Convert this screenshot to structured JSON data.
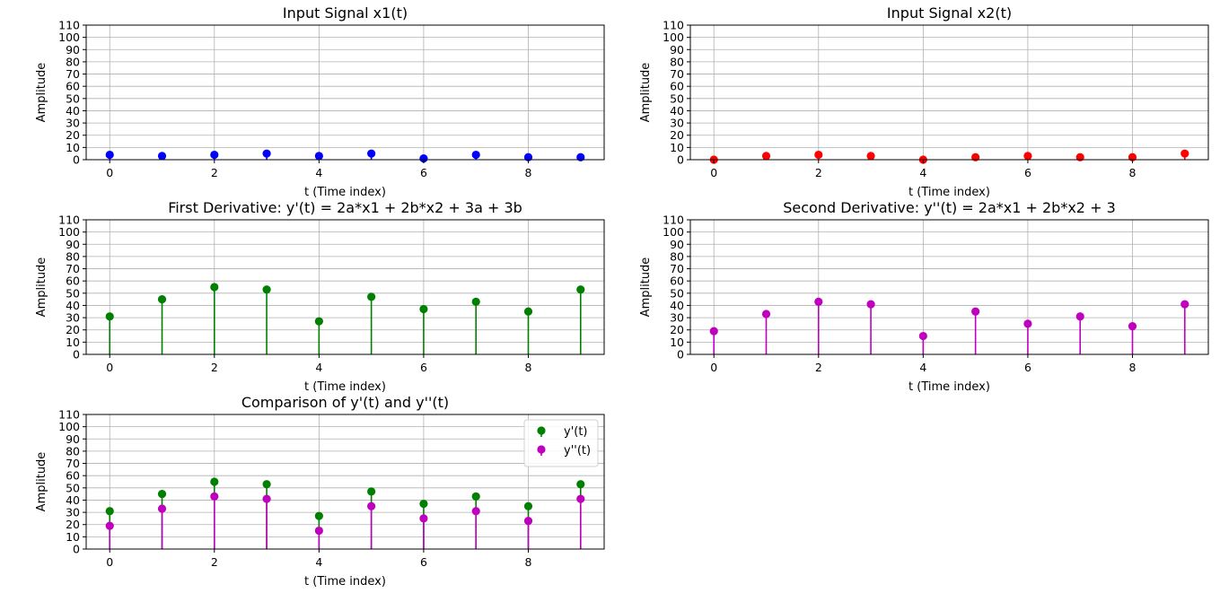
{
  "chart_data": [
    {
      "type": "stem",
      "title": "Input Signal x1(t)",
      "xlabel": "t (Time index)",
      "ylabel": "Amplitude",
      "xlim": [
        -0.45,
        9.45
      ],
      "ylim": [
        0,
        110
      ],
      "xticks": [
        0,
        2,
        4,
        6,
        8
      ],
      "yticks": [
        0,
        10,
        20,
        30,
        40,
        50,
        60,
        70,
        80,
        90,
        100,
        110
      ],
      "grid": true,
      "series": [
        {
          "color": "#0000ff",
          "x": [
            0,
            1,
            2,
            3,
            4,
            5,
            6,
            7,
            8,
            9
          ],
          "values": [
            4,
            3,
            4,
            5,
            3,
            5,
            1,
            4,
            2,
            2
          ]
        }
      ]
    },
    {
      "type": "stem",
      "title": "Input Signal x2(t)",
      "xlabel": "t (Time index)",
      "ylabel": "Amplitude",
      "xlim": [
        -0.45,
        9.45
      ],
      "ylim": [
        0,
        110
      ],
      "xticks": [
        0,
        2,
        4,
        6,
        8
      ],
      "yticks": [
        0,
        10,
        20,
        30,
        40,
        50,
        60,
        70,
        80,
        90,
        100,
        110
      ],
      "grid": true,
      "series": [
        {
          "color": "#ff0000",
          "x": [
            0,
            1,
            2,
            3,
            4,
            5,
            6,
            7,
            8,
            9
          ],
          "values": [
            0,
            3,
            4,
            3,
            0,
            2,
            3,
            2,
            2,
            5
          ]
        }
      ]
    },
    {
      "type": "stem",
      "title": "First Derivative: y'(t) = 2a*x1 + 2b*x2 + 3a + 3b",
      "xlabel": "t (Time index)",
      "ylabel": "Amplitude",
      "xlim": [
        -0.45,
        9.45
      ],
      "ylim": [
        0,
        110
      ],
      "xticks": [
        0,
        2,
        4,
        6,
        8
      ],
      "yticks": [
        0,
        10,
        20,
        30,
        40,
        50,
        60,
        70,
        80,
        90,
        100,
        110
      ],
      "grid": true,
      "series": [
        {
          "color": "#008000",
          "x": [
            0,
            1,
            2,
            3,
            4,
            5,
            6,
            7,
            8,
            9
          ],
          "values": [
            31,
            45,
            55,
            53,
            27,
            47,
            37,
            43,
            35,
            53
          ]
        }
      ]
    },
    {
      "type": "stem",
      "title": "Second Derivative: y''(t) = 2a*x1 + 2b*x2 + 3",
      "xlabel": "t (Time index)",
      "ylabel": "Amplitude",
      "xlim": [
        -0.45,
        9.45
      ],
      "ylim": [
        0,
        110
      ],
      "xticks": [
        0,
        2,
        4,
        6,
        8
      ],
      "yticks": [
        0,
        10,
        20,
        30,
        40,
        50,
        60,
        70,
        80,
        90,
        100,
        110
      ],
      "grid": true,
      "series": [
        {
          "color": "#bf00bf",
          "x": [
            0,
            1,
            2,
            3,
            4,
            5,
            6,
            7,
            8,
            9
          ],
          "values": [
            19,
            33,
            43,
            41,
            15,
            35,
            25,
            31,
            23,
            41
          ]
        }
      ]
    },
    {
      "type": "stem",
      "title": "Comparison of y'(t) and y''(t)",
      "xlabel": "t (Time index)",
      "ylabel": "Amplitude",
      "xlim": [
        -0.45,
        9.45
      ],
      "ylim": [
        0,
        110
      ],
      "xticks": [
        0,
        2,
        4,
        6,
        8
      ],
      "yticks": [
        0,
        10,
        20,
        30,
        40,
        50,
        60,
        70,
        80,
        90,
        100,
        110
      ],
      "grid": true,
      "legend": "top-right",
      "series": [
        {
          "name": "y'(t)",
          "color": "#008000",
          "x": [
            0,
            1,
            2,
            3,
            4,
            5,
            6,
            7,
            8,
            9
          ],
          "values": [
            31,
            45,
            55,
            53,
            27,
            47,
            37,
            43,
            35,
            53
          ]
        },
        {
          "name": "y''(t)",
          "color": "#bf00bf",
          "x": [
            0,
            1,
            2,
            3,
            4,
            5,
            6,
            7,
            8,
            9
          ],
          "values": [
            19,
            33,
            43,
            41,
            15,
            35,
            25,
            31,
            23,
            41
          ]
        }
      ]
    }
  ]
}
